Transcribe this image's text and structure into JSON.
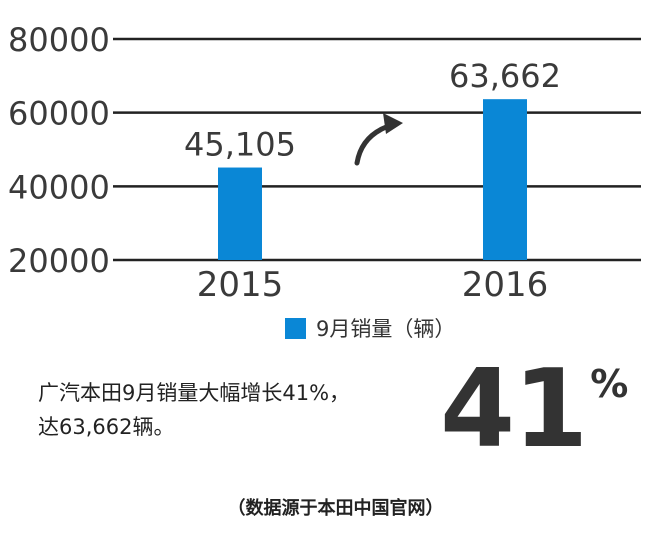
{
  "chart_data": {
    "type": "bar",
    "categories": [
      "2015",
      "2016"
    ],
    "series": [
      {
        "name": "9月销量（辆）",
        "values": [
          45105,
          63662
        ]
      }
    ],
    "data_labels": [
      "45,105",
      "63,662"
    ],
    "yticks": [
      "20000",
      "40000",
      "60000",
      "80000"
    ],
    "ylim": [
      20000,
      80000
    ],
    "grid": true,
    "legend_position": "bottom",
    "bar_color": "#0a87d6"
  },
  "legend": {
    "label": "9月销量（辆）"
  },
  "caption": {
    "line1": "广汽本田9月销量大幅增长41%，",
    "line2": "达63,662辆。"
  },
  "highlight": {
    "number": "41",
    "sign": "%"
  },
  "source": "（数据源于本田中国官网）"
}
